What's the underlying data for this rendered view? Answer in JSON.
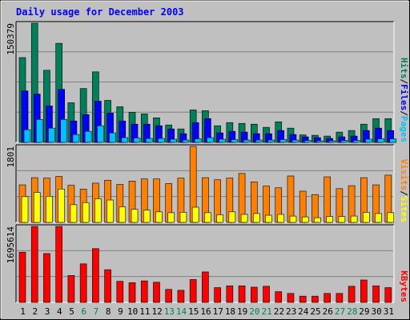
{
  "title": "Daily usage for December 2003",
  "colors": {
    "background": "#c0c0c0",
    "plot_bg": "#c0c0c0",
    "grid": "#808080",
    "title": "#0000ff",
    "hits": "#00805a",
    "files": "#0000ff",
    "pages": "#00c0ff",
    "visits": "#ff8000",
    "sites": "#ffff00",
    "kbytes": "#ff0000",
    "weekday_label": "#000000",
    "weekend_label": "#00805a"
  },
  "chart_data": [
    {
      "type": "bar",
      "panel": "hits-files-pages",
      "title": "Daily usage for December 2003",
      "ylabel": "150379",
      "ymax": 150379,
      "legend": [
        "Pages",
        "Files",
        "Hits"
      ],
      "legend_placement": "right",
      "categories": [
        "1",
        "2",
        "3",
        "4",
        "5",
        "6",
        "7",
        "8",
        "9",
        "10",
        "11",
        "12",
        "13",
        "14",
        "15",
        "16",
        "17",
        "18",
        "19",
        "20",
        "21",
        "22",
        "23",
        "24",
        "25",
        "26",
        "27",
        "28",
        "29",
        "30",
        "31"
      ],
      "series": [
        {
          "name": "Hits",
          "color": "#00805a",
          "values": [
            107000,
            150379,
            91000,
            125000,
            50000,
            68000,
            89000,
            53000,
            45000,
            38000,
            36000,
            31000,
            22000,
            17000,
            41000,
            40000,
            21000,
            25000,
            24000,
            23000,
            19000,
            26000,
            18000,
            9500,
            9000,
            8000,
            13000,
            15000,
            23000,
            30000,
            30000
          ]
        },
        {
          "name": "Files",
          "color": "#0000ff",
          "values": [
            65000,
            61000,
            46000,
            67000,
            27000,
            35000,
            52000,
            37000,
            27000,
            23000,
            23000,
            21000,
            17000,
            11000,
            25000,
            30000,
            12000,
            14000,
            13000,
            11000,
            11000,
            15000,
            10000,
            7000,
            6000,
            5000,
            7000,
            8000,
            15000,
            18000,
            15000
          ]
        },
        {
          "name": "Pages",
          "color": "#00c0ff",
          "values": [
            16000,
            29000,
            18000,
            29000,
            10000,
            14000,
            21000,
            12000,
            6000,
            5500,
            5000,
            5000,
            4000,
            3000,
            4500,
            6000,
            4000,
            3500,
            3000,
            3000,
            3000,
            3500,
            3000,
            2500,
            2000,
            2000,
            2500,
            2500,
            4000,
            4500,
            4500
          ]
        }
      ]
    },
    {
      "type": "bar",
      "panel": "visits-sites",
      "ylabel": "1801",
      "ymax": 1801,
      "legend": [
        "Sites",
        "Visits"
      ],
      "legend_placement": "right",
      "categories": [
        "1",
        "2",
        "3",
        "4",
        "5",
        "6",
        "7",
        "8",
        "9",
        "10",
        "11",
        "12",
        "13",
        "14",
        "15",
        "16",
        "17",
        "18",
        "19",
        "20",
        "21",
        "22",
        "23",
        "24",
        "25",
        "26",
        "27",
        "28",
        "29",
        "30",
        "31"
      ],
      "series": [
        {
          "name": "Visits",
          "color": "#ff8000",
          "values": [
            890,
            1060,
            1050,
            1090,
            880,
            790,
            930,
            1000,
            900,
            980,
            1030,
            1030,
            920,
            1050,
            1801,
            1060,
            1010,
            1050,
            1160,
            960,
            860,
            820,
            1100,
            740,
            660,
            1080,
            800,
            870,
            1060,
            890,
            1120
          ]
        },
        {
          "name": "Sites",
          "color": "#ffff00",
          "values": [
            610,
            710,
            620,
            790,
            420,
            470,
            560,
            530,
            370,
            310,
            290,
            250,
            230,
            240,
            360,
            230,
            180,
            250,
            190,
            210,
            170,
            190,
            150,
            130,
            110,
            140,
            140,
            150,
            240,
            210,
            230
          ]
        }
      ]
    },
    {
      "type": "bar",
      "panel": "kbytes",
      "ylabel": "1695614",
      "ymax": 1695614,
      "legend": [
        "KBytes"
      ],
      "legend_placement": "right",
      "categories": [
        "1",
        "2",
        "3",
        "4",
        "5",
        "6",
        "7",
        "8",
        "9",
        "10",
        "11",
        "12",
        "13",
        "14",
        "15",
        "16",
        "17",
        "18",
        "19",
        "20",
        "21",
        "22",
        "23",
        "24",
        "25",
        "26",
        "27",
        "28",
        "29",
        "30",
        "31"
      ],
      "series": [
        {
          "name": "KBytes",
          "color": "#ff0000",
          "values": [
            1120000,
            1695614,
            1090000,
            1695614,
            600000,
            860000,
            1200000,
            730000,
            470000,
            440000,
            480000,
            450000,
            290000,
            270000,
            510000,
            680000,
            330000,
            370000,
            370000,
            340000,
            360000,
            240000,
            200000,
            140000,
            140000,
            200000,
            200000,
            360000,
            500000,
            370000,
            330000
          ]
        }
      ]
    }
  ],
  "xaxis": {
    "days": [
      "1",
      "2",
      "3",
      "4",
      "5",
      "6",
      "7",
      "8",
      "9",
      "10",
      "11",
      "12",
      "13",
      "14",
      "15",
      "16",
      "17",
      "18",
      "19",
      "20",
      "21",
      "22",
      "23",
      "24",
      "25",
      "26",
      "27",
      "28",
      "29",
      "30",
      "31"
    ],
    "weekend_days": [
      "6",
      "7",
      "13",
      "14",
      "20",
      "21",
      "27",
      "28"
    ]
  }
}
